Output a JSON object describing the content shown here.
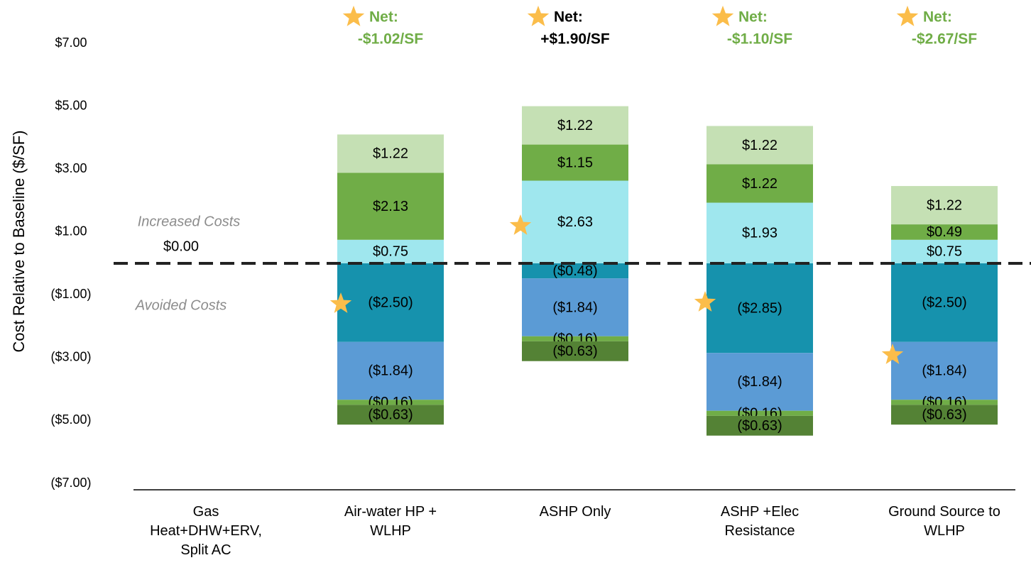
{
  "chart_data": {
    "type": "stacked_bar",
    "y_label": "Cost Relative to Baseline ($/SF)",
    "categories": [
      "Gas\nHeat+DHW+ERV,\nSplit AC",
      "Air-water HP +\nWLHP",
      "ASHP Only",
      "ASHP +Elec\nResistance",
      "Ground Source to\nWLHP"
    ],
    "ylim": [
      -7,
      7
    ],
    "yticks": [
      {
        "value": 7,
        "label": "$7.00"
      },
      {
        "value": 5,
        "label": "$5.00"
      },
      {
        "value": 3,
        "label": "$3.00"
      },
      {
        "value": 1,
        "label": "$1.00"
      },
      {
        "value": -1,
        "label": "($1.00)"
      },
      {
        "value": -3,
        "label": "($3.00)"
      },
      {
        "value": -5,
        "label": "($5.00)"
      },
      {
        "value": -7,
        "label": "($7.00)"
      }
    ],
    "series": [
      {
        "color": "#9fe7ee",
        "values": [
          null,
          0.75,
          2.63,
          1.93,
          0.75
        ],
        "value_labels": [
          null,
          "$0.75",
          "$2.63",
          "$1.93",
          "$0.75"
        ]
      },
      {
        "color": "#70ad47",
        "values": [
          null,
          2.13,
          1.15,
          1.22,
          0.49
        ],
        "value_labels": [
          null,
          "$2.13",
          "$1.15",
          "$1.22",
          "$0.49"
        ]
      },
      {
        "color": "#c5e0b4",
        "values": [
          null,
          1.22,
          1.22,
          1.22,
          1.22
        ],
        "value_labels": [
          null,
          "$1.22",
          "$1.22",
          "$1.22",
          "$1.22"
        ]
      },
      {
        "color": "#1692ad",
        "values": [
          null,
          -2.5,
          -0.48,
          -2.85,
          -2.5
        ],
        "value_labels": [
          null,
          "($2.50)",
          "($0.48)",
          "($2.85)",
          "($2.50)"
        ]
      },
      {
        "color": "#5b9bd5",
        "values": [
          null,
          -1.84,
          -1.84,
          -1.84,
          -1.84
        ],
        "value_labels": [
          null,
          "($1.84)",
          "($1.84)",
          "($1.84)",
          "($1.84)"
        ]
      },
      {
        "color": "#70ad47",
        "values": [
          null,
          -0.16,
          -0.16,
          -0.16,
          -0.16
        ],
        "value_labels": [
          null,
          "($0.16)",
          "($0.16)",
          "($0.16)",
          "($0.16)"
        ]
      },
      {
        "color": "#548235",
        "values": [
          null,
          -0.63,
          -0.63,
          -0.63,
          -0.63
        ],
        "value_labels": [
          null,
          "($0.63)",
          "($0.63)",
          "($0.63)",
          "($0.63)"
        ]
      }
    ],
    "zero_label": "$0.00",
    "increased_label": "Increased Costs",
    "avoided_label": "Avoided Costs",
    "net_title": "Net:",
    "net_labels": [
      null,
      "-$1.02/SF",
      "+$1.90/SF",
      "-$1.10/SF",
      "-$2.67/SF"
    ],
    "net_colors": [
      null,
      "#70ad47",
      "#000000",
      "#70ad47",
      "#70ad47"
    ]
  }
}
